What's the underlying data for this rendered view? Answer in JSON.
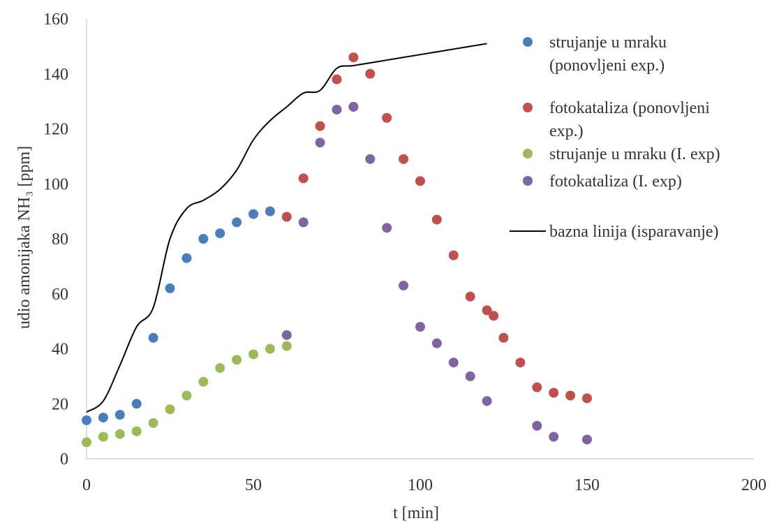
{
  "chart_data": {
    "type": "scatter",
    "title": "",
    "xlabel": "t [min]",
    "ylabel": "udio amonijaka NH₃ [ppm]",
    "xlim": [
      0,
      200
    ],
    "ylim": [
      0,
      160
    ],
    "xticks": [
      0,
      50,
      100,
      150,
      200
    ],
    "yticks": [
      0,
      20,
      40,
      60,
      80,
      100,
      120,
      140,
      160
    ],
    "grid": false,
    "legend_position": "top-right",
    "series": [
      {
        "name": "strujanje u mraku (ponovljeni exp.)",
        "legend_lines": [
          "strujanje u mraku",
          "(ponovljeni exp.)"
        ],
        "kind": "scatter",
        "color": "#4a7ebb",
        "points": [
          [
            0,
            14
          ],
          [
            5,
            15
          ],
          [
            10,
            16
          ],
          [
            15,
            20
          ],
          [
            20,
            44
          ],
          [
            25,
            62
          ],
          [
            30,
            73
          ],
          [
            35,
            80
          ],
          [
            40,
            82
          ],
          [
            45,
            86
          ],
          [
            50,
            89
          ],
          [
            55,
            90
          ]
        ]
      },
      {
        "name": "fotokataliza (ponovljeni exp.)",
        "legend_lines": [
          "fotokataliza (ponovljeni",
          "exp.)"
        ],
        "kind": "scatter",
        "color": "#c0504d",
        "points": [
          [
            60,
            88
          ],
          [
            65,
            102
          ],
          [
            70,
            121
          ],
          [
            75,
            138
          ],
          [
            80,
            146
          ],
          [
            85,
            140
          ],
          [
            90,
            124
          ],
          [
            95,
            109
          ],
          [
            100,
            101
          ],
          [
            105,
            87
          ],
          [
            110,
            74
          ],
          [
            115,
            59
          ],
          [
            120,
            54
          ],
          [
            122,
            52
          ],
          [
            125,
            44
          ],
          [
            130,
            35
          ],
          [
            135,
            26
          ],
          [
            140,
            24
          ],
          [
            145,
            23
          ],
          [
            150,
            22
          ]
        ]
      },
      {
        "name": "strujanje u mraku (I. exp)",
        "legend_lines": [
          "strujanje u mraku (I. exp)"
        ],
        "kind": "scatter",
        "color": "#9bbb59",
        "points": [
          [
            0,
            6
          ],
          [
            5,
            8
          ],
          [
            10,
            9
          ],
          [
            15,
            10
          ],
          [
            20,
            13
          ],
          [
            25,
            18
          ],
          [
            30,
            23
          ],
          [
            35,
            28
          ],
          [
            40,
            33
          ],
          [
            45,
            36
          ],
          [
            50,
            38
          ],
          [
            55,
            40
          ],
          [
            60,
            41
          ]
        ]
      },
      {
        "name": "fotokataliza (I. exp)",
        "legend_lines": [
          "fotokataliza (I. exp)"
        ],
        "kind": "scatter",
        "color": "#8064a2",
        "points": [
          [
            60,
            45
          ],
          [
            65,
            86
          ],
          [
            70,
            115
          ],
          [
            75,
            127
          ],
          [
            80,
            128
          ],
          [
            85,
            109
          ],
          [
            90,
            84
          ],
          [
            95,
            63
          ],
          [
            100,
            48
          ],
          [
            105,
            42
          ],
          [
            110,
            35
          ],
          [
            115,
            30
          ],
          [
            120,
            21
          ],
          [
            135,
            12
          ],
          [
            140,
            8
          ],
          [
            150,
            7
          ]
        ]
      },
      {
        "name": "bazna linija (isparavanje)",
        "legend_lines": [
          "bazna linija (isparavanje)"
        ],
        "kind": "line",
        "color": "#000000",
        "points": [
          [
            0,
            17
          ],
          [
            5,
            21
          ],
          [
            10,
            34
          ],
          [
            15,
            48
          ],
          [
            20,
            55
          ],
          [
            25,
            80
          ],
          [
            30,
            91
          ],
          [
            35,
            94
          ],
          [
            40,
            98
          ],
          [
            45,
            105
          ],
          [
            50,
            116
          ],
          [
            55,
            123
          ],
          [
            60,
            128
          ],
          [
            65,
            133
          ],
          [
            70,
            134
          ],
          [
            75,
            142
          ],
          [
            80,
            143
          ],
          [
            90,
            145
          ],
          [
            100,
            147
          ],
          [
            110,
            149
          ],
          [
            120,
            151
          ]
        ]
      }
    ]
  }
}
